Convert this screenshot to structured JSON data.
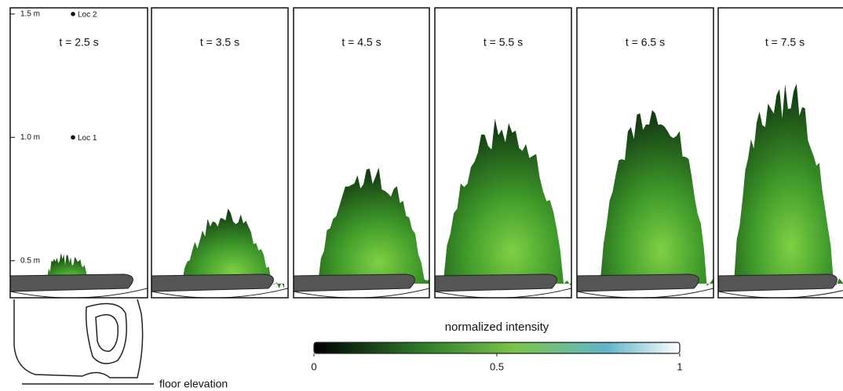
{
  "figure": {
    "panels": [
      "t = 2.5 s",
      "t = 3.5 s",
      "t = 4.5 s",
      "t = 5.5 s",
      "t = 6.5 s",
      "t = 7.5 s"
    ],
    "height_axis": {
      "ylim": [
        0.35,
        1.525
      ],
      "ticks": [
        {
          "value": 1.5,
          "label": "1.5 m"
        },
        {
          "value": 1.0,
          "label": "1.0 m"
        },
        {
          "value": 0.5,
          "label": "0.5 m"
        }
      ]
    },
    "locations": [
      {
        "label": "Loc 2",
        "height": 1.5
      },
      {
        "label": "Loc 1",
        "height": 1.0
      }
    ],
    "colorbar": {
      "title": "normalized intensity",
      "lim": [
        0,
        1
      ],
      "ticks": [
        0,
        0.5,
        1
      ]
    },
    "floor_label": "floor elevation"
  }
}
